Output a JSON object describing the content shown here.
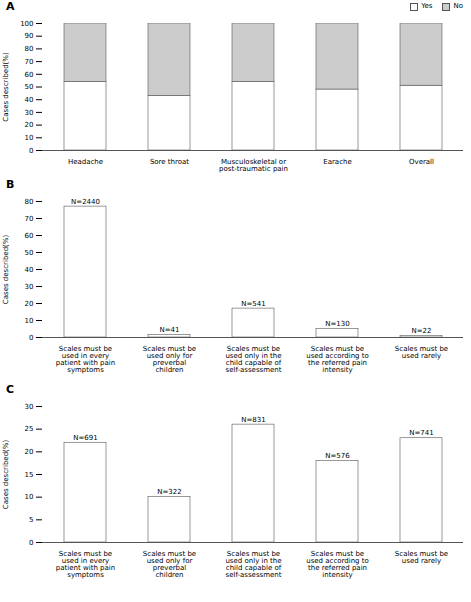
{
  "chart_data": [
    {
      "type": "bar",
      "title": "A",
      "stacked": true,
      "legend": "right",
      "grid": false,
      "categories": [
        "Headache",
        "Sore throat",
        "Musculoskeletal or\npost-traumatic pain",
        "Earache",
        "Overall"
      ],
      "series": [
        {
          "name": "Yes",
          "color": "#ffffff",
          "values": [
            54,
            43,
            54,
            48,
            51
          ]
        },
        {
          "name": "No",
          "color": "#cccccc",
          "values": [
            46,
            57,
            46,
            52,
            49
          ]
        }
      ],
      "y_label": "Cases described(%)",
      "ylim": [
        0,
        100
      ],
      "yticks": [
        0,
        10,
        20,
        30,
        40,
        50,
        60,
        70,
        80,
        90,
        100
      ]
    },
    {
      "type": "bar",
      "title": "B",
      "grid": false,
      "color": "#ffffff",
      "categories": [
        "Scales must be\nused in every\npatient with pain\nsymptoms",
        "Scales must be\nused only for\npreverbal\nchildren",
        "Scales must be\nused only in the\nchild capable of\nself-assessment",
        "Scales must be\nused according to\nthe referred pain\nintensity",
        "Scales must be\nused rarely"
      ],
      "values": [
        77,
        1.5,
        17,
        5,
        1
      ],
      "annotations": [
        "N=2440",
        "N=41",
        "N=541",
        "N=130",
        "N=22"
      ],
      "y_label": "Cases described(%)",
      "ylim": [
        0,
        80
      ],
      "yticks": [
        0,
        10,
        20,
        30,
        40,
        50,
        60,
        70,
        80
      ]
    },
    {
      "type": "bar",
      "title": "C",
      "grid": false,
      "color": "#ffffff",
      "categories": [
        "Scales must be\nused in every\npatient with pain\nsymptoms",
        "Scales must be\nused only for\npreverbal\nchildren",
        "Scales must be\nused only in the\nchild capable of\nself-assessment",
        "Scales must be\nused according to\nthe referred pain\nintensity",
        "Scales must be\nused rarely"
      ],
      "values": [
        22,
        10,
        26,
        18,
        23
      ],
      "annotations": [
        "N=691",
        "N=322",
        "N=831",
        "N=576",
        "N=741"
      ],
      "y_label": "Cases described(%)",
      "ylim": [
        0,
        30
      ],
      "yticks": [
        0,
        5,
        10,
        15,
        20,
        25,
        30
      ]
    }
  ]
}
